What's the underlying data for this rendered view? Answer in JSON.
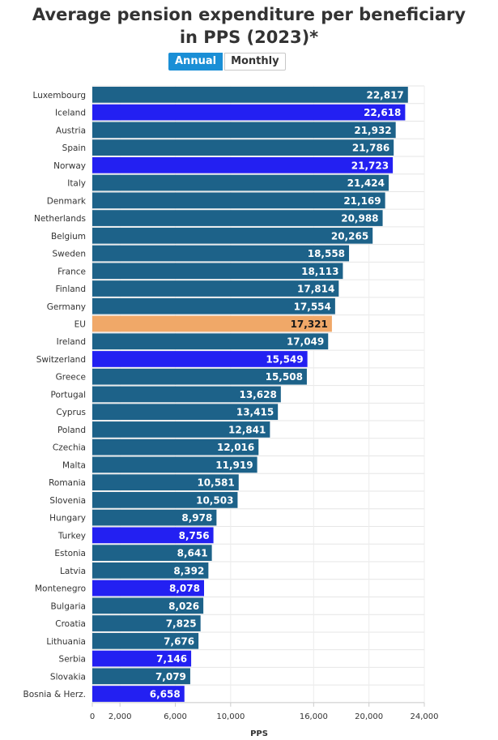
{
  "chart_data": {
    "type": "bar",
    "orientation": "horizontal",
    "title": "Average pension expenditure per beneficiary in PPS (2023)*",
    "title_lines": [
      "Average pension expenditure per beneficiary",
      "in PPS (2023)*"
    ],
    "xlabel": "PPS",
    "ylabel": "",
    "xlim": [
      0,
      24000
    ],
    "xticks": [
      0,
      2000,
      6000,
      10000,
      16000,
      20000,
      24000
    ],
    "xtick_labels": [
      "0",
      "2,000",
      "6,000",
      "10,000",
      "16,000",
      "20,000",
      "24,000"
    ],
    "grid": true,
    "categories": [
      "Luxembourg",
      "Iceland",
      "Austria",
      "Spain",
      "Norway",
      "Italy",
      "Denmark",
      "Netherlands",
      "Belgium",
      "Sweden",
      "France",
      "Finland",
      "Germany",
      "EU",
      "Ireland",
      "Switzerland",
      "Greece",
      "Portugal",
      "Cyprus",
      "Poland",
      "Czechia",
      "Malta",
      "Romania",
      "Slovenia",
      "Hungary",
      "Turkey",
      "Estonia",
      "Latvia",
      "Montenegro",
      "Bulgaria",
      "Croatia",
      "Lithuania",
      "Serbia",
      "Slovakia",
      "Bosnia & Herz."
    ],
    "values": [
      22817,
      22618,
      21932,
      21786,
      21723,
      21424,
      21169,
      20988,
      20265,
      18558,
      18113,
      17814,
      17554,
      17321,
      17049,
      15549,
      15508,
      13628,
      13415,
      12841,
      12016,
      11919,
      10581,
      10503,
      8978,
      8756,
      8641,
      8392,
      8078,
      8026,
      7825,
      7676,
      7146,
      7079,
      6658
    ],
    "value_labels": [
      "22,817",
      "22,618",
      "21,932",
      "21,786",
      "21,723",
      "21,424",
      "21,169",
      "20,988",
      "20,265",
      "18,558",
      "18,113",
      "17,814",
      "17,554",
      "17,321",
      "17,049",
      "15,549",
      "15,508",
      "13,628",
      "13,415",
      "12,841",
      "12,016",
      "11,919",
      "10,581",
      "10,503",
      "8,978",
      "8,756",
      "8,641",
      "8,392",
      "8,078",
      "8,026",
      "7,825",
      "7,676",
      "7,146",
      "7,079",
      "6,658"
    ],
    "groups": [
      "eu_member",
      "non_eu",
      "eu_member",
      "eu_member",
      "non_eu",
      "eu_member",
      "eu_member",
      "eu_member",
      "eu_member",
      "eu_member",
      "eu_member",
      "eu_member",
      "eu_member",
      "eu_total",
      "eu_member",
      "non_eu",
      "eu_member",
      "eu_member",
      "eu_member",
      "eu_member",
      "eu_member",
      "eu_member",
      "eu_member",
      "eu_member",
      "eu_member",
      "non_eu",
      "eu_member",
      "eu_member",
      "non_eu",
      "eu_member",
      "eu_member",
      "eu_member",
      "non_eu",
      "eu_member",
      "non_eu"
    ],
    "colors": {
      "eu_member": "#1d6289",
      "non_eu": "#2320f2",
      "eu_total": "#f0a868"
    }
  },
  "toggle": {
    "annual_label": "Annual",
    "monthly_label": "Monthly",
    "selected": "annual"
  }
}
